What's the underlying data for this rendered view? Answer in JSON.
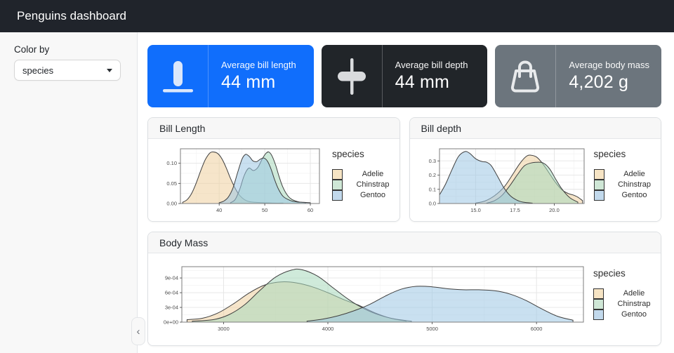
{
  "navbar": {
    "title": "Penguins dashboard"
  },
  "sidebar": {
    "color_by_label": "Color by",
    "color_by_value": "species",
    "collapse_icon": "chevron-left"
  },
  "value_boxes": [
    {
      "title": "Average bill length",
      "value": "44 mm",
      "bg": "#106efc",
      "icon": "bill-length-ruler-icon"
    },
    {
      "title": "Average bill depth",
      "value": "44 mm",
      "bg": "#212529",
      "icon": "bill-depth-caliper-icon"
    },
    {
      "title": "Average body mass",
      "value": "4,202 g",
      "bg": "#6c757d",
      "icon": "handbag-icon"
    }
  ],
  "cards": [
    {
      "title": "Bill Length"
    },
    {
      "title": "Bill depth"
    },
    {
      "title": "Body Mass"
    }
  ],
  "chart_data": [
    {
      "key": "bill_length",
      "type": "area",
      "title": "Bill Length density by species",
      "legend_title": "species",
      "xlim": [
        31.5,
        62
      ],
      "ylim": [
        0,
        0.136
      ],
      "xticks": {
        "values": [
          40,
          50,
          60
        ],
        "labels": [
          "40",
          "50",
          "60"
        ]
      },
      "yticks": {
        "values": [
          0,
          0.05,
          0.1
        ],
        "labels": [
          "0.00",
          "0.05",
          "0.10"
        ]
      },
      "stroke": "#3f3f3f",
      "series": [
        {
          "name": "Adelie",
          "fill": "#EFCF9F",
          "legend_fill": "#F6E4C4",
          "x": [
            32,
            33,
            34,
            35,
            36,
            37,
            38,
            38.8,
            39.6,
            40.5,
            41.5,
            42.5,
            43.5,
            44.5,
            45.5,
            46.5,
            48,
            50,
            52,
            54
          ],
          "y": [
            0.003,
            0.01,
            0.026,
            0.052,
            0.083,
            0.11,
            0.126,
            0.128,
            0.125,
            0.113,
            0.09,
            0.062,
            0.038,
            0.02,
            0.01,
            0.005,
            0.003,
            0.002,
            0.001,
            0.001
          ]
        },
        {
          "name": "Chinstrap",
          "fill": "#A8D8BC",
          "legend_fill": "#CFE7D6",
          "x": [
            42.5,
            43.5,
            44.5,
            45.5,
            46.5,
            47.5,
            48.5,
            49.5,
            50.3,
            50.9,
            51.6,
            52.4,
            53.2,
            54,
            55,
            56,
            57.5,
            59
          ],
          "y": [
            0.002,
            0.01,
            0.035,
            0.07,
            0.088,
            0.082,
            0.09,
            0.112,
            0.125,
            0.128,
            0.118,
            0.095,
            0.065,
            0.04,
            0.02,
            0.01,
            0.004,
            0.002
          ]
        },
        {
          "name": "Gentoo",
          "fill": "#9CC7E4",
          "legend_fill": "#C2D9EC",
          "x": [
            40,
            41,
            42,
            43,
            44,
            45,
            45.8,
            46.6,
            47.4,
            48.2,
            49,
            49.8,
            50.6,
            51.4,
            52.2,
            53,
            54,
            55.5,
            57,
            58.5,
            60
          ],
          "y": [
            0.002,
            0.006,
            0.016,
            0.038,
            0.075,
            0.11,
            0.122,
            0.117,
            0.106,
            0.104,
            0.11,
            0.113,
            0.105,
            0.085,
            0.058,
            0.036,
            0.018,
            0.008,
            0.004,
            0.003,
            0.002
          ]
        }
      ]
    },
    {
      "key": "bill_depth",
      "type": "area",
      "title": "Bill depth density by species",
      "legend_title": "species",
      "xlim": [
        12.7,
        21.9
      ],
      "ylim": [
        0,
        0.385
      ],
      "xticks": {
        "values": [
          15.0,
          17.5,
          20.0
        ],
        "labels": [
          "15.0",
          "17.5",
          "20.0"
        ]
      },
      "yticks": {
        "values": [
          0,
          0.1,
          0.2,
          0.3
        ],
        "labels": [
          "0.0",
          "0.1",
          "0.2",
          "0.3"
        ]
      },
      "stroke": "#3f3f3f",
      "series": [
        {
          "name": "Adelie",
          "fill": "#EFCF9F",
          "legend_fill": "#F6E4C4",
          "x": [
            15.0,
            15.6,
            16.2,
            16.8,
            17.3,
            17.8,
            18.2,
            18.5,
            18.9,
            19.3,
            19.7,
            20.1,
            20.5,
            20.9,
            21.2,
            21.5,
            21.8
          ],
          "y": [
            0.003,
            0.018,
            0.055,
            0.115,
            0.195,
            0.28,
            0.33,
            0.34,
            0.325,
            0.275,
            0.21,
            0.145,
            0.095,
            0.07,
            0.06,
            0.045,
            0.02
          ]
        },
        {
          "name": "Chinstrap",
          "fill": "#A8D8BC",
          "legend_fill": "#CFE7D6",
          "x": [
            15.7,
            16.2,
            16.7,
            17.2,
            17.7,
            18.1,
            18.5,
            18.9,
            19.3,
            19.7,
            20.1,
            20.5,
            21.0,
            21.5
          ],
          "y": [
            0.003,
            0.02,
            0.06,
            0.13,
            0.21,
            0.265,
            0.285,
            0.29,
            0.285,
            0.245,
            0.17,
            0.1,
            0.04,
            0.01
          ]
        },
        {
          "name": "Gentoo",
          "fill": "#9CC7E4",
          "legend_fill": "#C2D9EC",
          "x": [
            12.7,
            13.1,
            13.5,
            13.9,
            14.3,
            14.6,
            15.0,
            15.4,
            15.7,
            16.0,
            16.4,
            16.8,
            17.2,
            17.6,
            18.0,
            18.6
          ],
          "y": [
            0.06,
            0.14,
            0.24,
            0.33,
            0.365,
            0.355,
            0.315,
            0.295,
            0.29,
            0.265,
            0.19,
            0.11,
            0.055,
            0.025,
            0.01,
            0.003
          ]
        }
      ]
    },
    {
      "key": "body_mass",
      "type": "area",
      "title": "Body Mass density by species",
      "legend_title": "species",
      "xlim": [
        2600,
        6450
      ],
      "ylim": [
        0,
        0.00113
      ],
      "xticks": {
        "values": [
          3000,
          4000,
          5000,
          6000
        ],
        "labels": [
          "3000",
          "4000",
          "5000",
          "6000"
        ]
      },
      "yticks": {
        "values": [
          0,
          0.0003,
          0.0006,
          0.0009
        ],
        "labels": [
          "0e+00",
          "3e-04",
          "6e-04",
          "9e-04"
        ]
      },
      "stroke": "#3f3f3f",
      "series": [
        {
          "name": "Adelie",
          "fill": "#EFCF9F",
          "legend_fill": "#F6E4C4",
          "x": [
            2650,
            2800,
            2950,
            3100,
            3250,
            3400,
            3550,
            3700,
            3850,
            4000,
            4150,
            4300,
            4450,
            4600,
            4750
          ],
          "y": [
            5e-05,
            8e-05,
            0.00019,
            0.00038,
            0.0006,
            0.00076,
            0.00082,
            0.0008,
            0.00072,
            0.0006,
            0.00046,
            0.00034,
            0.00019,
            8e-05,
            2e-05
          ]
        },
        {
          "name": "Chinstrap",
          "fill": "#A8D8BC",
          "legend_fill": "#CFE7D6",
          "x": [
            2700,
            2900,
            3050,
            3200,
            3350,
            3500,
            3650,
            3750,
            3900,
            4050,
            4200,
            4350,
            4500,
            4650,
            4800
          ],
          "y": [
            2e-05,
            5e-05,
            0.00015,
            0.00035,
            0.00065,
            0.00092,
            0.00106,
            0.00107,
            0.00094,
            0.0007,
            0.00046,
            0.00027,
            0.00014,
            6e-05,
            2e-05
          ]
        },
        {
          "name": "Gentoo",
          "fill": "#9CC7E4",
          "legend_fill": "#C2D9EC",
          "x": [
            3800,
            3950,
            4100,
            4250,
            4400,
            4550,
            4700,
            4850,
            5000,
            5150,
            5300,
            5450,
            5600,
            5750,
            5900,
            6050,
            6200,
            6350
          ],
          "y": [
            2e-05,
            6e-05,
            0.00013,
            0.00023,
            0.00036,
            0.00053,
            0.00067,
            0.00073,
            0.00072,
            0.00068,
            0.00066,
            0.00066,
            0.00064,
            0.00057,
            0.00044,
            0.00027,
            0.00012,
            4e-05
          ]
        }
      ]
    }
  ]
}
